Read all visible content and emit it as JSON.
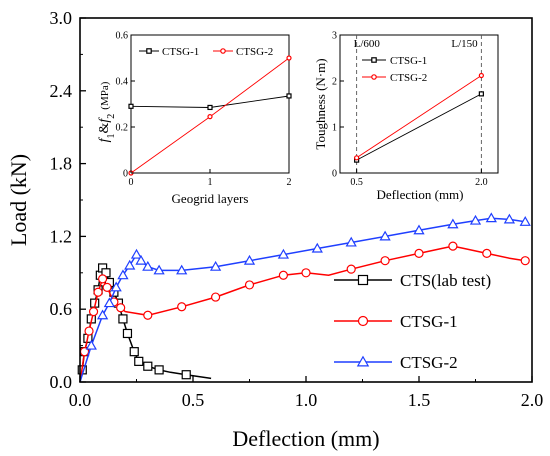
{
  "chart_data": [
    {
      "type": "line",
      "role": "main",
      "xlabel": "Deflection (mm)",
      "ylabel": "Load (kN)",
      "xlim": [
        0,
        2.0
      ],
      "ylim": [
        0,
        3.0
      ],
      "xticks": [
        "0.0",
        "0.5",
        "1.0",
        "1.5",
        "2.0"
      ],
      "yticks": [
        "0.0",
        "0.6",
        "1.2",
        "1.8",
        "2.4",
        "3.0"
      ],
      "grid": false,
      "legend_position": "right",
      "series": [
        {
          "name": "CTS(lab test)",
          "color": "#000000",
          "marker": "square",
          "points": [
            [
              0.0,
              0.0
            ],
            [
              0.01,
              0.1
            ],
            [
              0.02,
              0.25
            ],
            [
              0.035,
              0.36
            ],
            [
              0.05,
              0.52
            ],
            [
              0.065,
              0.65
            ],
            [
              0.08,
              0.76
            ],
            [
              0.09,
              0.88
            ],
            [
              0.1,
              0.94
            ],
            [
              0.115,
              0.9
            ],
            [
              0.13,
              0.82
            ],
            [
              0.15,
              0.74
            ],
            [
              0.17,
              0.65
            ],
            [
              0.19,
              0.52
            ],
            [
              0.21,
              0.4
            ],
            [
              0.24,
              0.25
            ],
            [
              0.26,
              0.17
            ],
            [
              0.3,
              0.13
            ],
            [
              0.35,
              0.1
            ],
            [
              0.4,
              0.08
            ],
            [
              0.47,
              0.06
            ],
            [
              0.58,
              0.03
            ]
          ],
          "marker_x": [
            0.01,
            0.02,
            0.035,
            0.05,
            0.065,
            0.08,
            0.09,
            0.1,
            0.115,
            0.13,
            0.15,
            0.17,
            0.19,
            0.21,
            0.24,
            0.26,
            0.3,
            0.35,
            0.47
          ]
        },
        {
          "name": "CTSG-1",
          "color": "#ff0000",
          "marker": "circle",
          "points": [
            [
              0.0,
              0.0
            ],
            [
              0.01,
              0.12
            ],
            [
              0.02,
              0.25
            ],
            [
              0.03,
              0.33
            ],
            [
              0.04,
              0.42
            ],
            [
              0.05,
              0.5
            ],
            [
              0.06,
              0.58
            ],
            [
              0.07,
              0.66
            ],
            [
              0.08,
              0.74
            ],
            [
              0.1,
              0.85
            ],
            [
              0.12,
              0.78
            ],
            [
              0.15,
              0.66
            ],
            [
              0.2,
              0.58
            ],
            [
              0.3,
              0.55
            ],
            [
              0.45,
              0.62
            ],
            [
              0.6,
              0.7
            ],
            [
              0.75,
              0.8
            ],
            [
              0.9,
              0.88
            ],
            [
              1.0,
              0.9
            ],
            [
              1.1,
              0.88
            ],
            [
              1.2,
              0.93
            ],
            [
              1.35,
              1.0
            ],
            [
              1.5,
              1.06
            ],
            [
              1.6,
              1.1
            ],
            [
              1.65,
              1.12
            ],
            [
              1.7,
              1.1
            ],
            [
              1.8,
              1.06
            ],
            [
              1.9,
              1.02
            ],
            [
              1.97,
              1.0
            ]
          ],
          "marker_x": [
            0.02,
            0.04,
            0.06,
            0.08,
            0.1,
            0.12,
            0.15,
            0.18,
            0.3,
            0.45,
            0.6,
            0.75,
            0.9,
            1.0,
            1.2,
            1.35,
            1.5,
            1.65,
            1.8,
            1.97
          ]
        },
        {
          "name": "CTSG-2",
          "color": "#1f3fff",
          "marker": "triangle",
          "points": [
            [
              0.0,
              0.0
            ],
            [
              0.02,
              0.12
            ],
            [
              0.05,
              0.3
            ],
            [
              0.08,
              0.45
            ],
            [
              0.1,
              0.55
            ],
            [
              0.13,
              0.65
            ],
            [
              0.16,
              0.78
            ],
            [
              0.19,
              0.88
            ],
            [
              0.22,
              0.96
            ],
            [
              0.25,
              1.05
            ],
            [
              0.27,
              1.0
            ],
            [
              0.3,
              0.95
            ],
            [
              0.35,
              0.92
            ],
            [
              0.45,
              0.92
            ],
            [
              0.6,
              0.95
            ],
            [
              0.75,
              1.0
            ],
            [
              0.9,
              1.05
            ],
            [
              1.05,
              1.1
            ],
            [
              1.2,
              1.15
            ],
            [
              1.35,
              1.2
            ],
            [
              1.5,
              1.25
            ],
            [
              1.65,
              1.3
            ],
            [
              1.75,
              1.33
            ],
            [
              1.82,
              1.35
            ],
            [
              1.9,
              1.34
            ],
            [
              1.97,
              1.32
            ]
          ],
          "marker_x": [
            0.05,
            0.1,
            0.13,
            0.16,
            0.19,
            0.22,
            0.25,
            0.27,
            0.3,
            0.35,
            0.45,
            0.6,
            0.75,
            0.9,
            1.05,
            1.2,
            1.35,
            1.5,
            1.65,
            1.75,
            1.82,
            1.9,
            1.97
          ]
        }
      ]
    },
    {
      "type": "line",
      "role": "inset-left",
      "xlabel": "Geogrid layers",
      "ylabel_parts": [
        "f",
        "1",
        "&",
        "f",
        "2",
        "(MPa)"
      ],
      "xlim": [
        0,
        2
      ],
      "ylim": [
        0,
        0.6
      ],
      "xticks": [
        "0",
        "1",
        "2"
      ],
      "yticks": [
        "0",
        "0.2",
        "0.4",
        "0.6"
      ],
      "grid": false,
      "legend_position": "top",
      "series": [
        {
          "name": "CTSG-1",
          "color": "#000000",
          "marker": "square",
          "points": [
            [
              0,
              0.29
            ],
            [
              1,
              0.285
            ],
            [
              2,
              0.335
            ]
          ]
        },
        {
          "name": "CTSG-2",
          "color": "#ff0000",
          "marker": "circle",
          "points": [
            [
              0,
              0.0
            ],
            [
              1,
              0.245
            ],
            [
              2,
              0.5
            ]
          ]
        }
      ]
    },
    {
      "type": "line",
      "role": "inset-right",
      "xlabel": "Deflection (mm)",
      "ylabel": "Toughness (N·m)",
      "xlim": [
        0.3,
        2.2
      ],
      "ylim": [
        0,
        3
      ],
      "xticks": [
        "0.5",
        "2.0"
      ],
      "xtick_values": [
        0.5,
        2.0
      ],
      "yticks": [
        "0",
        "1",
        "2",
        "3"
      ],
      "vlines": [
        {
          "x": 0.5,
          "label": "L/600"
        },
        {
          "x": 2.0,
          "label": "L/150"
        }
      ],
      "grid": false,
      "legend_position": "top-left",
      "series": [
        {
          "name": "CTSG-1",
          "color": "#000000",
          "marker": "square",
          "points": [
            [
              0.5,
              0.28
            ],
            [
              2.0,
              1.72
            ]
          ]
        },
        {
          "name": "CTSG-2",
          "color": "#ff0000",
          "marker": "circle",
          "points": [
            [
              0.5,
              0.33
            ],
            [
              2.0,
              2.12
            ]
          ]
        }
      ]
    }
  ]
}
